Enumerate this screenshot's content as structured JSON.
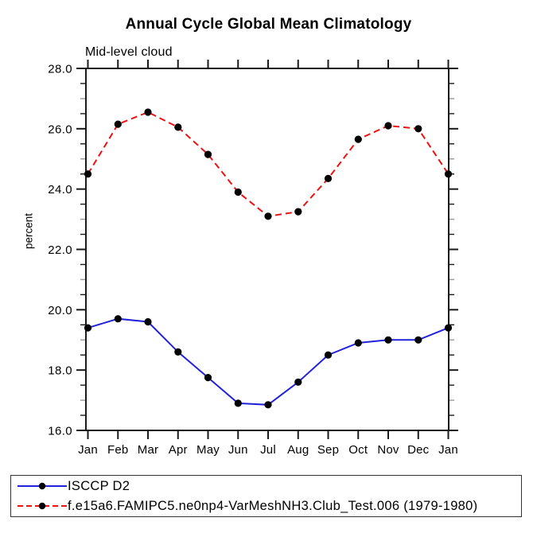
{
  "page": {
    "background": "#ffffff"
  },
  "colors": {
    "axis": "#1a1a1a",
    "minor_tick": "#1a1a1a",
    "minor_tick_alt": "#999999",
    "marker": "#000000",
    "series_blue": "#2222dd",
    "series_red": "#ee1111"
  },
  "chart_data": {
    "type": "line",
    "title": "Annual Cycle Global Mean Climatology",
    "subtitle": "Mid-level cloud",
    "ylabel": "percent",
    "xlabel": "",
    "categories": [
      "Jan",
      "Feb",
      "Mar",
      "Apr",
      "May",
      "Jun",
      "Jul",
      "Aug",
      "Sep",
      "Oct",
      "Nov",
      "Dec",
      "Jan"
    ],
    "ylim": [
      16.0,
      28.0
    ],
    "ytick_major_step": 2.0,
    "ytick_minor_step": 0.5,
    "ytick_labels": [
      "16.0",
      "18.0",
      "20.0",
      "22.0",
      "24.0",
      "26.0",
      "28.0"
    ],
    "grid": false,
    "legend_position": "bottom-left-box",
    "series": [
      {
        "name": "ISCCP D2",
        "color": "#2222dd",
        "line_style": "solid",
        "marker": "filled-circle",
        "marker_color": "#000000",
        "values": [
          19.4,
          19.7,
          19.6,
          18.6,
          17.75,
          16.9,
          16.85,
          17.6,
          18.5,
          18.9,
          19.0,
          19.0,
          19.4
        ]
      },
      {
        "name": "f.e15a6.FAMIPC5.ne0np4-VarMeshNH3.Club_Test.006 (1979-1980)",
        "color": "#ee1111",
        "line_style": "dashed",
        "marker": "filled-circle",
        "marker_color": "#000000",
        "values": [
          24.5,
          26.15,
          26.55,
          26.05,
          25.15,
          23.9,
          23.1,
          23.25,
          24.35,
          25.65,
          26.1,
          26.0,
          24.5
        ]
      }
    ]
  }
}
